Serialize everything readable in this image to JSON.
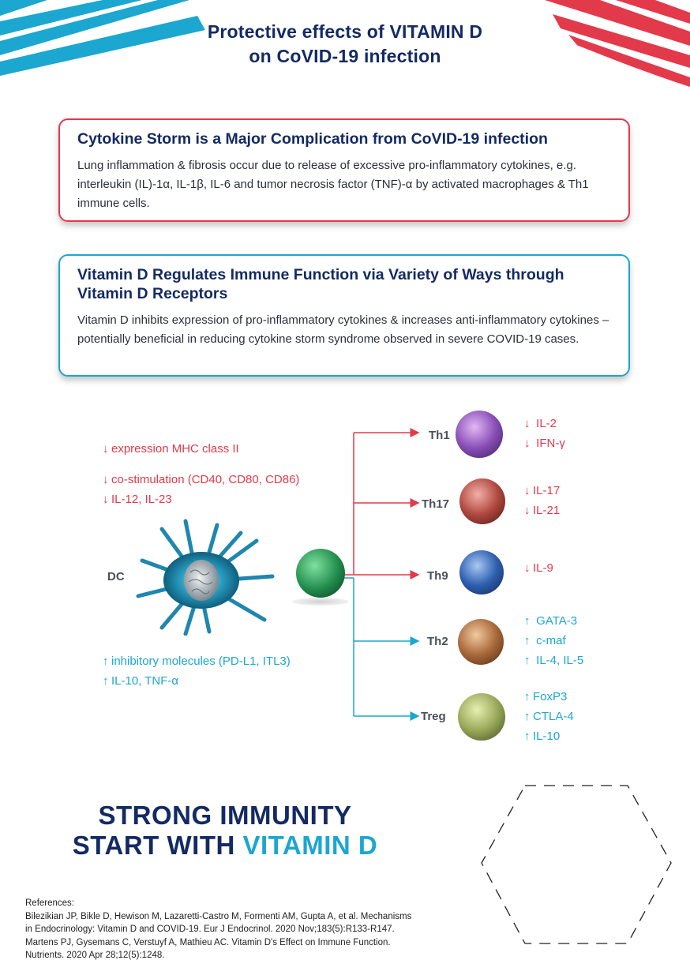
{
  "header": {
    "title_line1": "Protective effects of VITAMIN D",
    "title_line2": "on CoVID-19 infection"
  },
  "box_cytokine": {
    "heading": "Cytokine Storm is a Major Complication from CoVID-19 infection",
    "body": "Lung inflammation & fibrosis occur due to release of excessive pro-inflammatory cytokines, e.g. interleukin (IL)-1α, IL-1β, IL-6 and tumor necrosis factor (TNF)-α by activated macrophages & Th1 immune cells.",
    "border_color": "#e23a4b"
  },
  "box_vitamin": {
    "heading": "Vitamin D Regulates Immune Function via Variety of Ways through Vitamin D Receptors",
    "body": "Vitamin D inhibits expression of pro-inflammatory cytokines & increases anti-inflammatory cytokines – potentially beneficial in reducing cytokine storm syndrome observed in severe COVID-19 cases.",
    "border_color": "#1ba7cf"
  },
  "diagram": {
    "dc_label": "DC",
    "dc_down_effects": [
      "expression MHC class II",
      "co-stimulation (CD40, CD80, CD86)",
      "IL-12, IL-23"
    ],
    "dc_up_effects": [
      "inhibitory molecules (PD-L1, ITL3)",
      "IL-10, TNF-α"
    ],
    "cells": [
      {
        "label": "Th1",
        "direction": "down",
        "effects": [
          "IL-2",
          "IFN-γ"
        ],
        "color": "#7b4fa8"
      },
      {
        "label": "Th17",
        "direction": "down",
        "effects": [
          "IL-17",
          "IL-21"
        ],
        "color": "#b04a44"
      },
      {
        "label": "Th9",
        "direction": "down",
        "effects": [
          "IL-9"
        ],
        "color": "#2f5fa8"
      },
      {
        "label": "Th2",
        "direction": "up",
        "effects": [
          "GATA-3",
          "c-maf",
          "IL-4, IL-5"
        ],
        "color": "#a8683a"
      },
      {
        "label": "Treg",
        "direction": "up",
        "effects": [
          "FoxP3",
          "CTLA-4",
          "IL-10"
        ],
        "color": "#9aa85a"
      }
    ],
    "down_arrow": "↓",
    "up_arrow": "↑",
    "red_color": "#e23a4b",
    "blue_color": "#1ba7cf"
  },
  "slogan": {
    "line1": "STRONG IMMUNITY",
    "line2_prefix": "START WITH ",
    "line2_highlight": "VITAMIN D"
  },
  "references": {
    "heading": "References:",
    "ref1_line1": "Bilezikian JP, Bikle D, Hewison M, Lazaretti-Castro M, Formenti AM, Gupta A, et al. Mechanisms",
    "ref1_line2": "in Endocrinology: Vitamin D and COVID-19. Eur J Endocrinol. 2020 Nov;183(5):R133-R147.",
    "ref2_line1": "Martens PJ, Gysemans C, Verstuyf A, Mathieu AC. Vitamin D's Effect on Immune Function.",
    "ref2_line2": "Nutrients. 2020 Apr 28;12(5):1248."
  }
}
